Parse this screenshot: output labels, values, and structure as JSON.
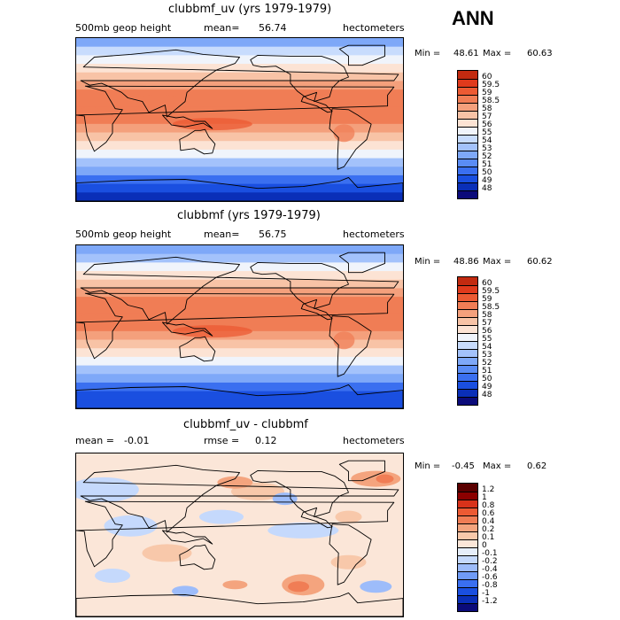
{
  "header": {
    "season": "ANN"
  },
  "colors": {
    "abs": [
      "#0b0b7a",
      "#0a2fb8",
      "#1a4fe0",
      "#3a6ff0",
      "#5a8cf5",
      "#7ea8f8",
      "#a3c2fb",
      "#c8dcfd",
      "#f0f4fb",
      "#fce3d4",
      "#f8c3a6",
      "#f4a07c",
      "#f07d55",
      "#ec5a33",
      "#e03a1c",
      "#c22a10",
      "#8b0000"
    ],
    "diff": [
      "#0b0b7a",
      "#0a2fb8",
      "#1a4fe0",
      "#3a6ff0",
      "#6f9bf6",
      "#9dbcfa",
      "#c5d9fc",
      "#e6eefa",
      "#fbe6d8",
      "#f8c8aa",
      "#f4a47e",
      "#f07d55",
      "#ec5a33",
      "#d8321a",
      "#8b0000"
    ]
  },
  "chart_data": [
    {
      "type": "heatmap",
      "title": "clubbmf_uv (yrs 1979-1979)",
      "variable_label": "500mb geop height",
      "mean_label": "mean=",
      "mean": "56.74",
      "units": "hectometers",
      "min_label": "Min =",
      "min": "48.61",
      "max_label": "Max =",
      "max": "60.63",
      "levels": [
        "60",
        "59.5",
        "59",
        "58.5",
        "58",
        "57",
        "56",
        "55",
        "54",
        "53",
        "52",
        "51",
        "50",
        "49",
        "48"
      ],
      "zonal_profile_north_to_south": [
        52.5,
        54,
        55.2,
        56.2,
        57.2,
        58.2,
        58.6,
        58.8,
        58.8,
        58.7,
        58.4,
        57.7,
        56.6,
        55.3,
        53.8,
        52.2,
        50.7,
        49.5,
        48.9
      ]
    },
    {
      "type": "heatmap",
      "title": "clubbmf (yrs 1979-1979)",
      "variable_label": "500mb geop height",
      "mean_label": "mean=",
      "mean": "56.75",
      "units": "hectometers",
      "min_label": "Min =",
      "min": "48.86",
      "max_label": "Max =",
      "max": "60.62",
      "levels": [
        "60",
        "59.5",
        "59",
        "58.5",
        "58",
        "57",
        "56",
        "55",
        "54",
        "53",
        "52",
        "51",
        "50",
        "49",
        "48"
      ],
      "zonal_profile_north_to_south": [
        52.4,
        53.9,
        55.1,
        56.2,
        57.2,
        58.2,
        58.6,
        58.9,
        58.9,
        58.7,
        58.4,
        57.7,
        56.6,
        55.3,
        53.8,
        52.2,
        50.8,
        49.6,
        49.0
      ]
    },
    {
      "type": "heatmap",
      "title": "clubbmf_uv - clubbmf",
      "mean_label": "mean =",
      "mean": "-0.01",
      "rmse_label": "rmse =",
      "rmse": "0.12",
      "units": "hectometers",
      "min_label": "Min =",
      "min": "-0.45",
      "max_label": "Max =",
      "max": "0.62",
      "levels": [
        "1.2",
        "1",
        "0.8",
        "0.6",
        "0.4",
        "0.2",
        "0.1",
        "0",
        "-0.1",
        "-0.2",
        "-0.4",
        "-0.6",
        "-0.8",
        "-1",
        "-1.2"
      ]
    }
  ]
}
